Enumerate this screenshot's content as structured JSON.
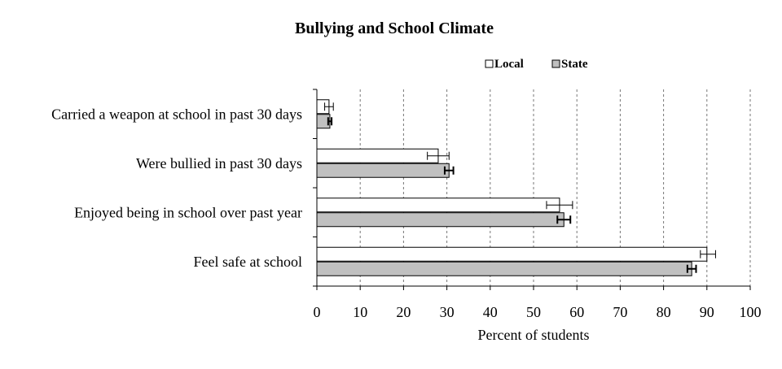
{
  "chart_data": {
    "type": "bar",
    "orientation": "horizontal",
    "title": "Bullying and School Climate",
    "xlabel": "Percent of students",
    "ylabel": "",
    "xlim": [
      0,
      100
    ],
    "xticks": [
      0,
      10,
      20,
      30,
      40,
      50,
      60,
      70,
      80,
      90,
      100
    ],
    "grid": "vertical-dashed",
    "legend_position": "top-right",
    "categories": [
      "Carried a weapon at school in past 30 days",
      "Were bullied in past 30 days",
      "Enjoyed being in school over past year",
      "Feel safe at school"
    ],
    "series": [
      {
        "name": "Local",
        "color": "#ffffff",
        "values": [
          2.8,
          28.0,
          56.0,
          90.0
        ],
        "error_low": [
          1.8,
          25.5,
          53.0,
          88.5
        ],
        "error_high": [
          3.8,
          30.5,
          59.0,
          92.0
        ]
      },
      {
        "name": "State",
        "color": "#c0c0c0",
        "values": [
          3.0,
          30.5,
          57.0,
          86.5
        ],
        "error_low": [
          2.6,
          29.5,
          55.5,
          85.5
        ],
        "error_high": [
          3.4,
          31.5,
          58.5,
          87.5
        ]
      }
    ]
  }
}
